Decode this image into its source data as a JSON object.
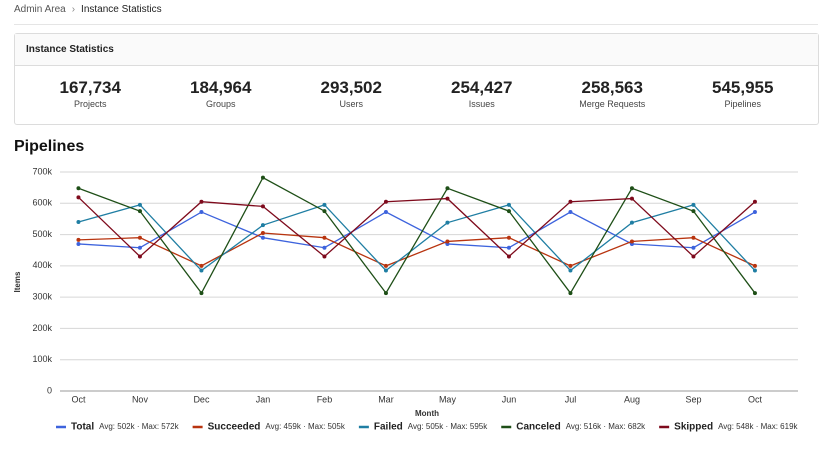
{
  "breadcrumb": [
    "Admin Area",
    "Instance Statistics"
  ],
  "card": {
    "title": "Instance Statistics",
    "stats": [
      {
        "value": "167,734",
        "label": "Projects"
      },
      {
        "value": "184,964",
        "label": "Groups"
      },
      {
        "value": "293,502",
        "label": "Users"
      },
      {
        "value": "254,427",
        "label": "Issues"
      },
      {
        "value": "258,563",
        "label": "Merge Requests"
      },
      {
        "value": "545,955",
        "label": "Pipelines"
      }
    ]
  },
  "chart_data": {
    "type": "line",
    "title": "Pipelines",
    "x_label": "Month",
    "y_label": "Items",
    "categories": [
      "Oct",
      "Nov",
      "Dec",
      "Jan",
      "Feb",
      "Mar",
      "May",
      "Jun",
      "Jul",
      "Aug",
      "Sep",
      "Oct"
    ],
    "ylim": [
      0,
      700000
    ],
    "yticks": [
      0,
      {
        "value": 100000,
        "label": "100k"
      },
      {
        "value": 200000,
        "label": "200k"
      },
      {
        "value": 300000,
        "label": "300k"
      },
      {
        "value": 400000,
        "label": "400k"
      },
      {
        "value": 500000,
        "label": "500k"
      },
      {
        "value": 600000,
        "label": "600k"
      },
      {
        "value": 700000,
        "label": "700k"
      }
    ],
    "grid": true,
    "series": [
      {
        "name": "Total",
        "summary": "Avg: 502k · Max: 572k",
        "color": "#3d63dd",
        "values": [
          470000,
          458000,
          572000,
          490000,
          458000,
          572000,
          470000,
          458000,
          572000,
          470000,
          458000,
          572000
        ]
      },
      {
        "name": "Succeeded",
        "summary": "Avg: 459k · Max: 505k",
        "color": "#b8340f",
        "values": [
          483000,
          490000,
          400000,
          505000,
          490000,
          400000,
          478000,
          490000,
          400000,
          478000,
          490000,
          400000
        ]
      },
      {
        "name": "Failed",
        "summary": "Avg: 505k · Max: 595k",
        "color": "#1f7ea3",
        "values": [
          540000,
          595000,
          385000,
          530000,
          595000,
          385000,
          538000,
          595000,
          385000,
          538000,
          595000,
          385000
        ]
      },
      {
        "name": "Canceled",
        "summary": "Avg: 516k · Max: 682k",
        "color": "#1e4f17",
        "values": [
          648000,
          575000,
          313000,
          682000,
          575000,
          313000,
          648000,
          575000,
          313000,
          648000,
          575000,
          313000
        ]
      },
      {
        "name": "Skipped",
        "summary": "Avg: 548k · Max: 619k",
        "color": "#7e0a1c",
        "values": [
          619000,
          430000,
          605000,
          590000,
          430000,
          605000,
          615000,
          430000,
          605000,
          615000,
          430000,
          605000
        ]
      }
    ]
  }
}
